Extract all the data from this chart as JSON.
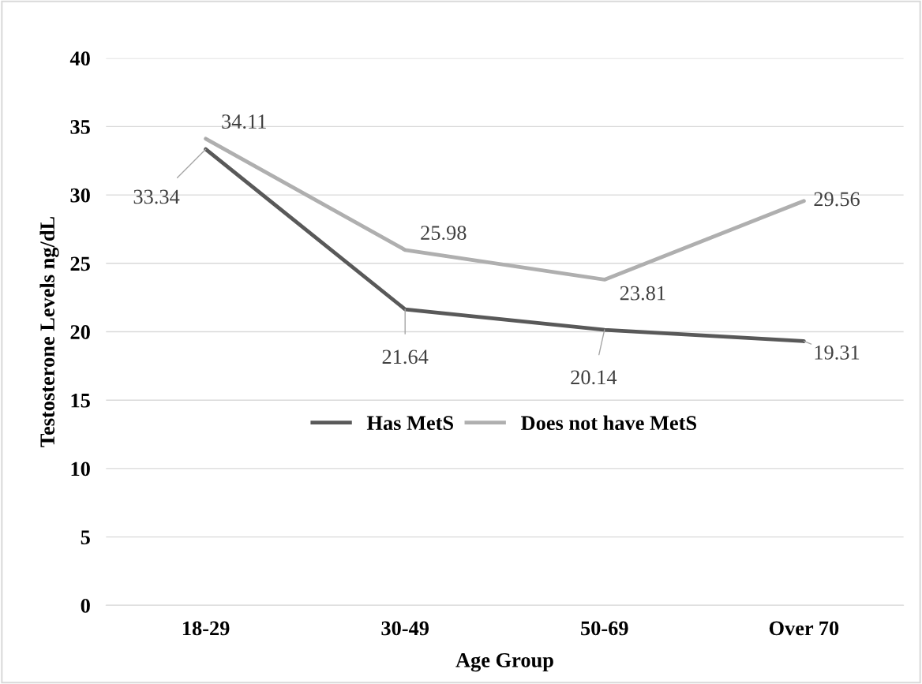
{
  "chart_data": {
    "type": "line",
    "xlabel": "Age Group",
    "ylabel": "Testosterone Levels ng/dL",
    "categories": [
      "18-29",
      "30-49",
      "50-69",
      "Over 70"
    ],
    "series": [
      {
        "name": "Has MetS",
        "color": "#595959",
        "values": [
          33.34,
          21.64,
          20.14,
          19.31
        ]
      },
      {
        "name": "Does not have MetS",
        "color": "#afafaf",
        "values": [
          34.11,
          25.98,
          23.81,
          29.56
        ]
      }
    ],
    "ylim": [
      0,
      40
    ],
    "yticks": [
      0,
      5,
      10,
      15,
      20,
      25,
      30,
      35,
      40
    ],
    "grid": "y",
    "legend": "center",
    "data_labels": true,
    "marker": "none",
    "line_style": "solid"
  }
}
